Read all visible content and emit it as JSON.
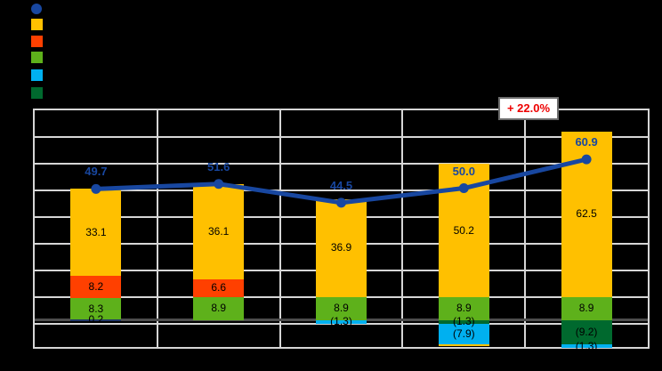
{
  "annotation": {
    "text": "+ 22.0%",
    "text_color": "#EE0000",
    "bg": "#FFFFFF",
    "border_color": "#6E6E6E"
  },
  "colors": {
    "line": "#1847A0",
    "orange": "#FFC000",
    "red": "#FF4000",
    "green": "#5EB11B",
    "cyan": "#00B0F0",
    "dark_green": "#00692E",
    "navy": "#203864",
    "grid": "#D6D6D6",
    "zero_axis": "#4D4D4D",
    "bar_label": "#000000"
  },
  "legend": {
    "markers": [
      {
        "key": "line",
        "shape": "circle"
      },
      {
        "key": "orange",
        "shape": "square"
      },
      {
        "key": "red",
        "shape": "square"
      },
      {
        "key": "green",
        "shape": "square"
      },
      {
        "key": "cyan",
        "shape": "square"
      },
      {
        "key": "dark_green",
        "shape": "square"
      }
    ]
  },
  "chart_data": {
    "type": "combo-stacked-bar-line",
    "categories": [
      "",
      "",
      "",
      "",
      ""
    ],
    "ylim": [
      -10,
      80
    ],
    "grid_step": 10,
    "grid": "on",
    "legend_position": "top-left",
    "line_series": {
      "marker": "circle",
      "values": [
        49.7,
        51.6,
        44.5,
        50.0,
        60.9
      ],
      "labels": [
        "49.7",
        "51.6",
        "44.5",
        "50.0",
        "60.9"
      ]
    },
    "bars": [
      {
        "pos": [
          {
            "k": "navy",
            "v": 0.2,
            "label": "0.2"
          },
          {
            "k": "green",
            "v": 8.3,
            "label": "8.3"
          },
          {
            "k": "red",
            "v": 8.2,
            "label": "8.2"
          },
          {
            "k": "orange",
            "v": 33.1,
            "label": "33.1"
          }
        ],
        "neg": []
      },
      {
        "pos": [
          {
            "k": "green",
            "v": 8.9,
            "label": "8.9"
          },
          {
            "k": "red",
            "v": 6.6,
            "label": "6.6"
          },
          {
            "k": "orange",
            "v": 36.1,
            "label": "36.1"
          }
        ],
        "neg": []
      },
      {
        "pos": [
          {
            "k": "green",
            "v": 8.9,
            "label": "8.9"
          },
          {
            "k": "orange",
            "v": 36.9,
            "label": "36.9"
          }
        ],
        "neg": [
          {
            "k": "cyan",
            "v": 1.3,
            "label": "(1.3)"
          }
        ]
      },
      {
        "pos": [
          {
            "k": "green",
            "v": 8.9,
            "label": "8.9"
          },
          {
            "k": "orange",
            "v": 50.2,
            "label": "50.2"
          }
        ],
        "neg": [
          {
            "k": "dark_green",
            "v": 1.3,
            "label": "(1.3)"
          },
          {
            "k": "cyan",
            "v": 7.9,
            "label": "(7.9)"
          },
          {
            "k": "orange",
            "v": 0.7,
            "label": ""
          }
        ]
      },
      {
        "pos": [
          {
            "k": "green",
            "v": 8.9,
            "label": "8.9"
          },
          {
            "k": "orange",
            "v": 62.5,
            "label": "62.5"
          }
        ],
        "neg": [
          {
            "k": "dark_green",
            "v": 9.2,
            "label": "(9.2)"
          },
          {
            "k": "cyan",
            "v": 1.3,
            "label": "(1.3)"
          }
        ]
      }
    ]
  }
}
